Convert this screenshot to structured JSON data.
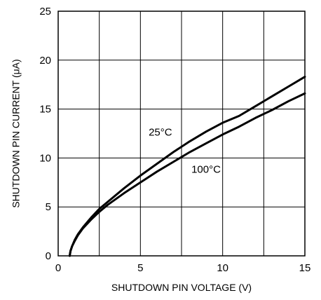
{
  "chart_data": {
    "type": "line",
    "title": "",
    "xlabel": "SHUTDOWN PIN VOLTAGE (V)",
    "ylabel": "SHUTDOWN PIN CURRENT (μA)",
    "xlim": [
      0,
      15
    ],
    "ylim": [
      0,
      25
    ],
    "x_ticks": [
      0,
      5,
      10,
      15
    ],
    "y_ticks": [
      0,
      5,
      10,
      15,
      20,
      25
    ],
    "x_tick_labels": [
      "0",
      "5",
      "10",
      "15"
    ],
    "y_tick_labels": [
      "0",
      "5",
      "10",
      "15",
      "20",
      "25"
    ],
    "grid": true,
    "legend": "none",
    "series": [
      {
        "name": "25°C",
        "color": "#000000",
        "x": [
          0.7,
          0.75,
          0.85,
          1.0,
          1.2,
          1.5,
          2.0,
          2.5,
          3.0,
          4.0,
          5.0,
          6.0,
          7.0,
          8.0,
          9.0,
          10.0,
          11.0,
          12.0,
          13.0,
          14.0,
          15.0
        ],
        "y": [
          0.0,
          0.5,
          1.0,
          1.6,
          2.2,
          2.9,
          3.9,
          4.8,
          5.5,
          6.9,
          8.2,
          9.4,
          10.6,
          11.7,
          12.7,
          13.6,
          14.3,
          15.3,
          16.3,
          17.3,
          18.3
        ]
      },
      {
        "name": "100°C",
        "color": "#000000",
        "x": [
          0.7,
          0.75,
          0.85,
          1.0,
          1.2,
          1.5,
          2.0,
          2.5,
          3.0,
          4.0,
          5.0,
          6.0,
          7.0,
          8.0,
          9.0,
          10.0,
          11.0,
          12.0,
          13.0,
          14.0,
          15.0
        ],
        "y": [
          0.0,
          0.5,
          1.0,
          1.5,
          2.1,
          2.8,
          3.7,
          4.5,
          5.2,
          6.4,
          7.5,
          8.6,
          9.6,
          10.6,
          11.5,
          12.4,
          13.2,
          14.1,
          14.9,
          15.8,
          16.6
        ]
      }
    ],
    "annotations": [
      {
        "id": "label-25c",
        "text": "25°C",
        "x": 5.5,
        "y": 12.3
      },
      {
        "id": "label-100c",
        "text": "100°C",
        "x": 8.1,
        "y": 8.5
      }
    ]
  }
}
